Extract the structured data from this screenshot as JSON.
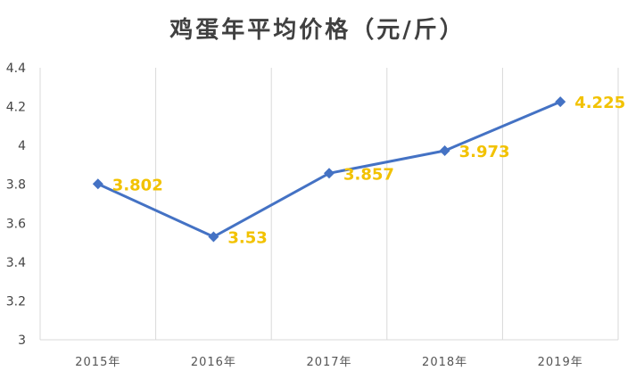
{
  "colors": {
    "line": "#4472C4",
    "label": "#F2C200",
    "grid": "#D9D9D9",
    "text": "#404040"
  },
  "chart_data": {
    "type": "line",
    "title": "鸡蛋年平均价格（元/斤）",
    "xlabel": "",
    "ylabel": "",
    "categories": [
      "2015年",
      "2016年",
      "2017年",
      "2018年",
      "2019年"
    ],
    "series": [
      {
        "values": [
          3.802,
          3.53,
          3.857,
          3.973,
          4.225
        ],
        "data_labels": [
          "3.802",
          "3.53",
          "3.857",
          "3.973",
          "4.225"
        ],
        "marker": "diamond"
      }
    ],
    "ylim": [
      3,
      4.4
    ],
    "yticks": [
      3,
      3.2,
      3.4,
      3.6,
      3.8,
      4,
      4.2,
      4.4
    ],
    "ytick_labels": [
      "3",
      "3.2",
      "3.4",
      "3.6",
      "3.8",
      "4",
      "4.2",
      "4.4"
    ],
    "grid": "vertical",
    "legend": "none"
  }
}
